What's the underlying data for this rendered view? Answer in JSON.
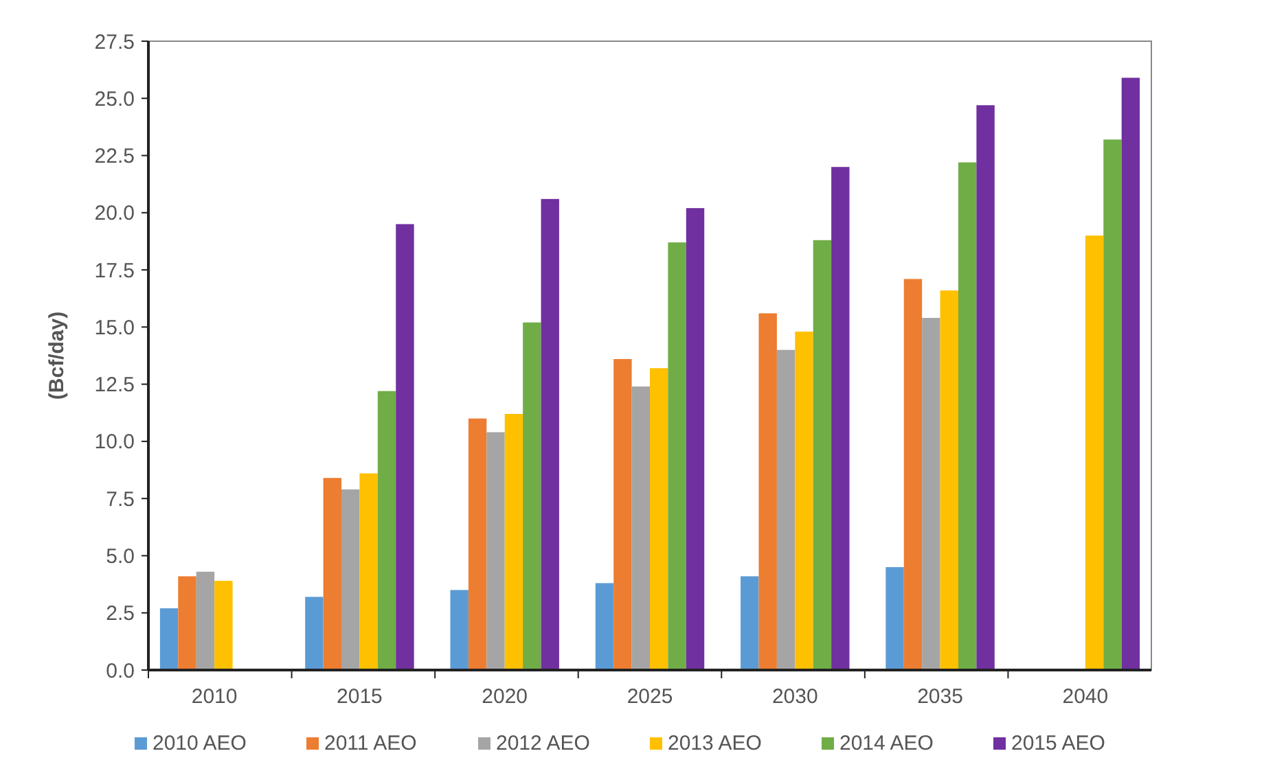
{
  "chart_data": {
    "type": "bar",
    "ylabel": "(Bcf/day)",
    "categories": [
      "2010",
      "2015",
      "2020",
      "2025",
      "2030",
      "2035",
      "2040"
    ],
    "series": [
      {
        "name": "2010 AEO",
        "color": "#5b9bd5",
        "values": [
          2.7,
          3.2,
          3.5,
          3.8,
          4.1,
          4.5,
          null
        ]
      },
      {
        "name": "2011 AEO",
        "color": "#ed7d31",
        "values": [
          4.1,
          8.4,
          11.0,
          13.6,
          15.6,
          17.1,
          null
        ]
      },
      {
        "name": "2012 AEO",
        "color": "#a5a5a5",
        "values": [
          4.3,
          7.9,
          10.4,
          12.4,
          14.0,
          15.4,
          null
        ]
      },
      {
        "name": "2013 AEO",
        "color": "#ffc000",
        "values": [
          3.9,
          8.6,
          11.2,
          13.2,
          14.8,
          16.6,
          19.0
        ]
      },
      {
        "name": "2014 AEO",
        "color": "#70ad47",
        "values": [
          null,
          12.2,
          15.2,
          18.7,
          18.8,
          22.2,
          23.2
        ]
      },
      {
        "name": "2015 AEO",
        "color": "#7030a0",
        "values": [
          null,
          19.5,
          20.6,
          20.2,
          22.0,
          24.7,
          25.9
        ]
      }
    ],
    "ylim": [
      0,
      27.5
    ],
    "yticks": [
      {
        "value": 0,
        "label": "0.0"
      },
      2.5,
      {
        "value": 5,
        "label": "5.0"
      },
      7.5,
      {
        "value": 10,
        "label": "10.0"
      },
      12.5,
      {
        "value": 15,
        "label": "15.0"
      },
      17.5,
      {
        "value": 20,
        "label": "20.0"
      },
      22.5,
      {
        "value": 25,
        "label": "25.0"
      },
      27.5
    ],
    "grid": false,
    "legend": "bottom"
  }
}
